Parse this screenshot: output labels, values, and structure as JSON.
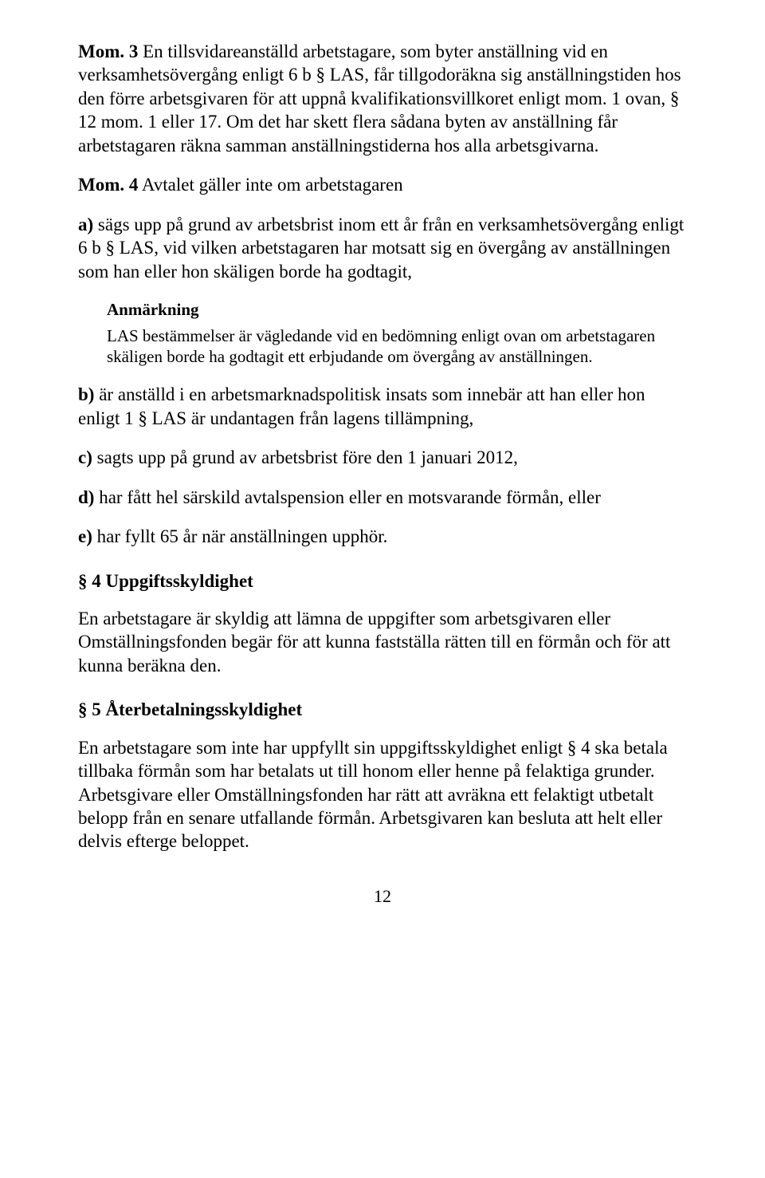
{
  "mom3": {
    "lead": "Mom. 3",
    "text": "  En tillsvidareanställd arbetstagare, som byter anställning vid en verksamhetsövergång enligt 6 b § LAS, får tillgodoräkna sig anställningstiden hos den förre arbetsgivaren för att uppnå kvalifikationsvillkoret enligt mom. 1 ovan, § 12 mom. 1 eller 17. Om det har skett flera sådana byten av anställning får arbetstagaren räkna samman anställningstiderna hos alla arbetsgivarna."
  },
  "mom4": {
    "lead": "Mom. 4",
    "text": "   Avtalet gäller inte om arbetstagaren"
  },
  "a": {
    "lead": "a)",
    "text": "   sägs upp på grund av arbetsbrist inom ett år från en verksamhetsövergång enligt 6 b § LAS, vid vilken arbetstagaren har motsatt sig en övergång av anställningen som han eller hon skäligen borde ha godtagit,"
  },
  "anm": {
    "title": "Anmärkning",
    "body": "LAS bestämmelser är vägledande vid en bedömning enligt ovan om arbetstagaren skäligen borde ha godtagit ett erbjudande om övergång av anställningen."
  },
  "b": {
    "lead": "b)",
    "text": "   är anställd i en arbetsmarknadspolitisk insats som innebär att han eller hon enligt 1 § LAS är undantagen från lagens tillämpning,"
  },
  "c": {
    "lead": "c)",
    "text": "   sagts upp på grund av arbetsbrist före den 1 januari 2012,"
  },
  "d": {
    "lead": "d)",
    "text": "   har fått hel särskild avtalspension eller en motsvarande förmån, eller"
  },
  "e": {
    "lead": "e)",
    "text": "   har fyllt 65 år när anställningen upphör."
  },
  "s4": {
    "heading": "§ 4   Uppgiftsskyldighet",
    "body": "En arbetstagare är skyldig att lämna de uppgifter som arbetsgivaren eller Omställningsfonden begär för att kunna fastställa rätten till en förmån och för att kunna beräkna den."
  },
  "s5": {
    "heading": "§ 5   Återbetalningsskyldighet",
    "body": "En arbetstagare som inte har uppfyllt sin uppgiftsskyldighet enligt § 4 ska betala tillbaka förmån som har betalats ut till honom eller henne på felaktiga grunder. Arbetsgivare eller Omställningsfonden har rätt att avräkna ett felaktigt utbetalt belopp från en senare utfallande förmån. Arbetsgivaren kan besluta att helt eller delvis efterge beloppet."
  },
  "pagenum": "12"
}
